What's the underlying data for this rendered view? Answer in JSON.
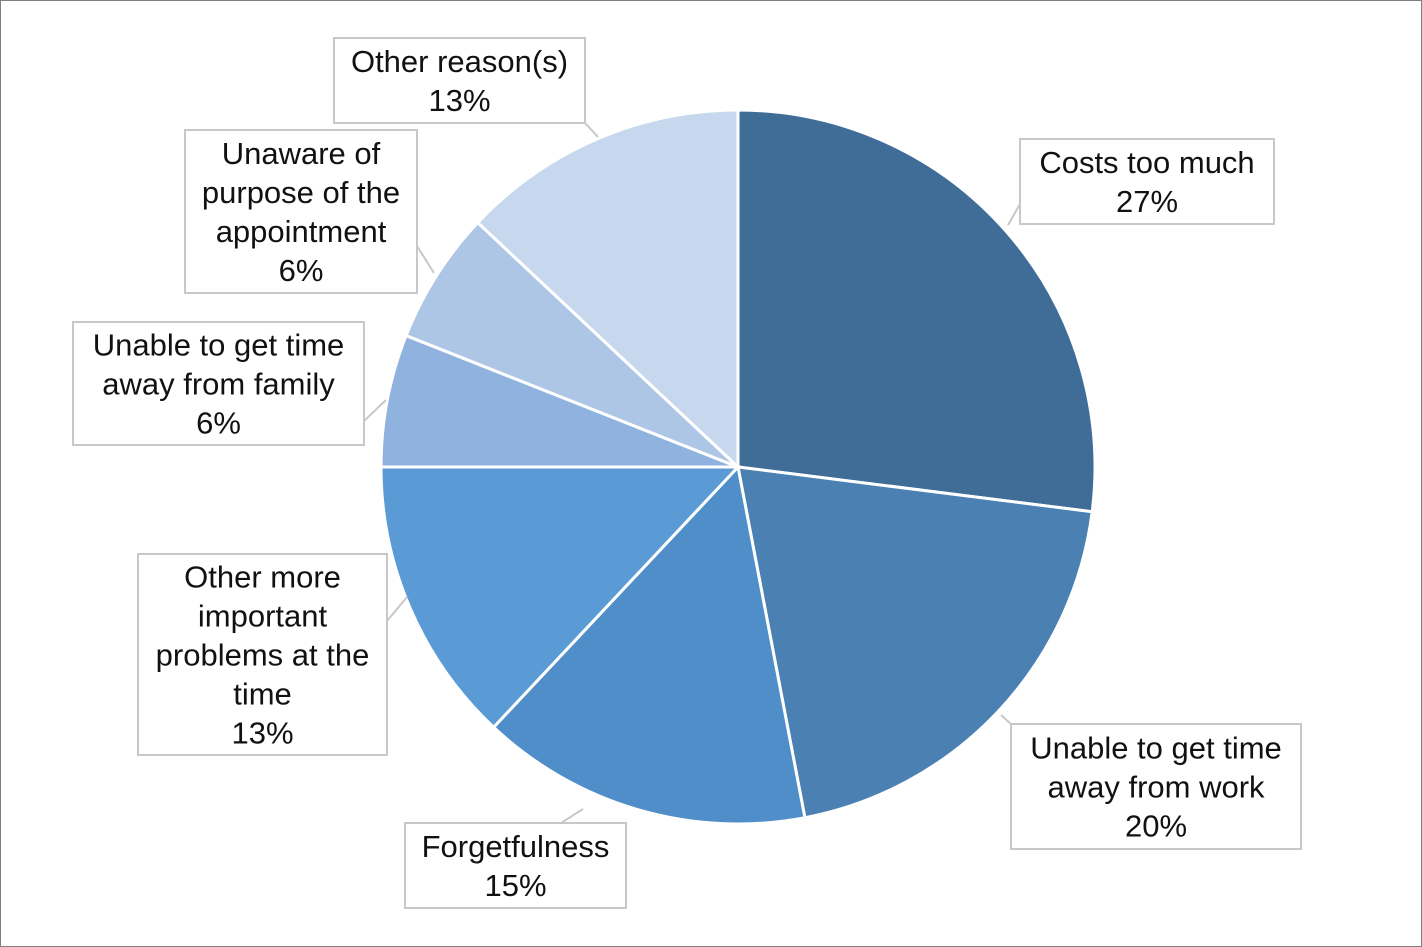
{
  "chart_data": {
    "type": "pie",
    "title": "",
    "start_angle_deg": 0,
    "direction": "clockwise",
    "slices": [
      {
        "label": [
          "Costs too much"
        ],
        "value": 27,
        "value_label": "27%",
        "color": "#3f6d98"
      },
      {
        "label": [
          "Unable to get time",
          "away from work"
        ],
        "value": 20,
        "value_label": "20%",
        "color": "#4b80b2"
      },
      {
        "label": [
          "Forgetfulness"
        ],
        "value": 15,
        "value_label": "15%",
        "color": "#4f8ec9"
      },
      {
        "label": [
          "Other more",
          "important",
          "problems at the",
          "time"
        ],
        "value": 13,
        "value_label": "13%",
        "color": "#5b9bd5"
      },
      {
        "label": [
          "Unable to get time",
          "away from family"
        ],
        "value": 6,
        "value_label": "6%",
        "color": "#8fb3de"
      },
      {
        "label": [
          "Unaware of",
          "purpose of the",
          "appointment"
        ],
        "value": 6,
        "value_label": "6%",
        "color": "#adc6e6"
      },
      {
        "label": [
          "Other reason(s)"
        ],
        "value": 13,
        "value_label": "13%",
        "color": "#c7d8ee"
      }
    ]
  }
}
